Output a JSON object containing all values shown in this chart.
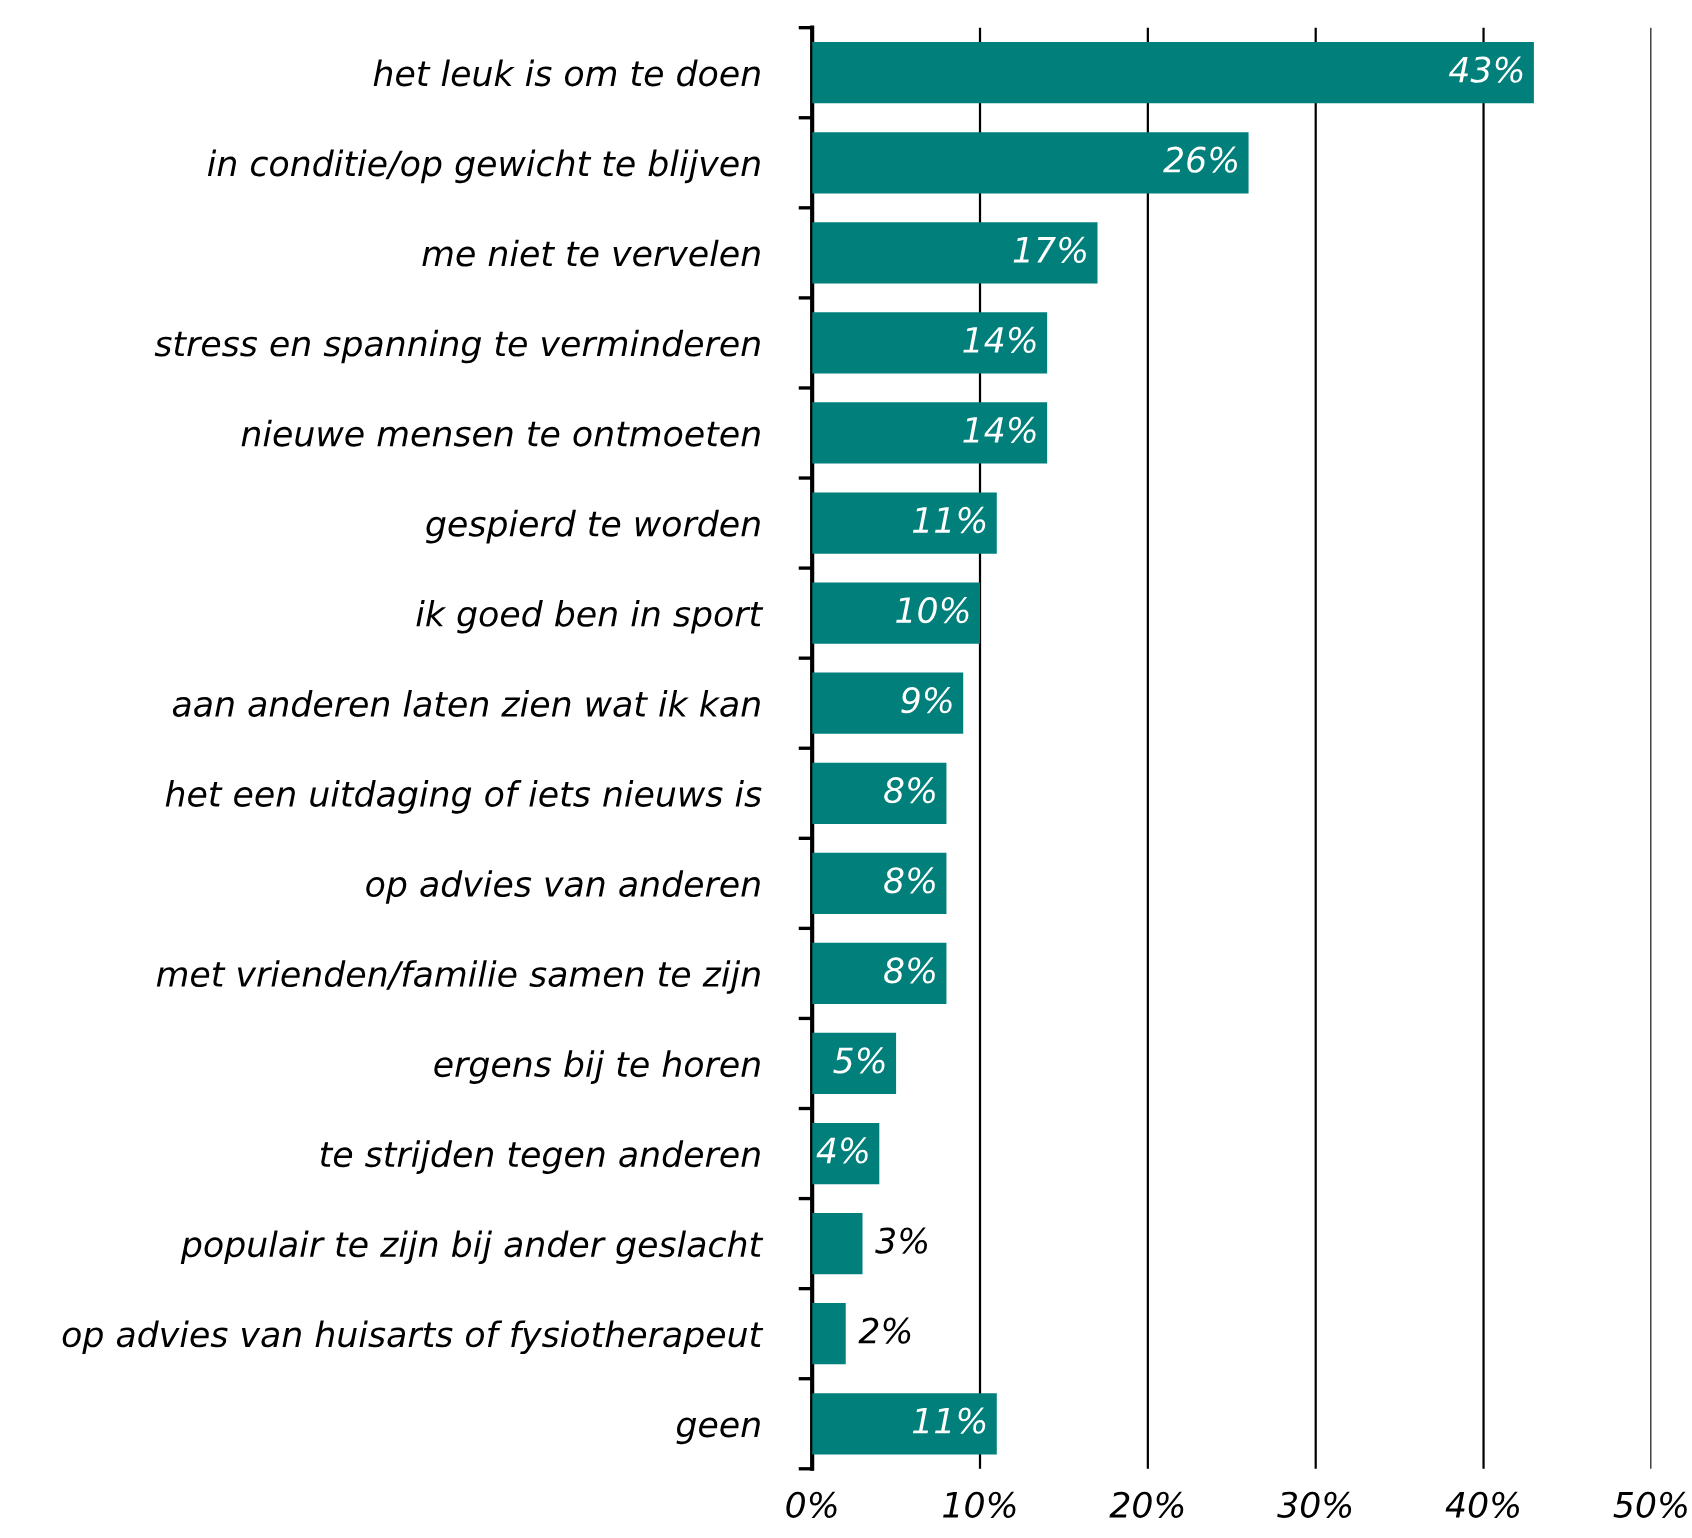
{
  "chart_data": {
    "type": "bar",
    "orientation": "horizontal",
    "categories": [
      "het leuk is om te doen",
      "in conditie/op gewicht te blijven",
      "me niet te vervelen",
      "stress en spanning te verminderen",
      "nieuwe mensen te ontmoeten",
      "gespierd te worden",
      "ik goed ben in sport",
      "aan anderen laten zien wat ik kan",
      "het een uitdaging of iets nieuws is",
      "op advies van anderen",
      "met vrienden/familie samen te zijn",
      "ergens bij te horen",
      "te strijden tegen anderen",
      "populair te zijn bij ander geslacht",
      "op advies van huisarts of fysiotherapeut",
      "geen"
    ],
    "values": [
      43,
      26,
      17,
      14,
      14,
      11,
      10,
      9,
      8,
      8,
      8,
      5,
      4,
      3,
      2,
      11
    ],
    "color": "#007f7b",
    "xlim": [
      0,
      50
    ],
    "xticks": [
      {
        "value": 0,
        "label": "0%"
      },
      {
        "value": 10,
        "label": "10%"
      },
      {
        "value": 20,
        "label": "20%"
      },
      {
        "value": 30,
        "label": "30%"
      },
      {
        "value": 40,
        "label": "40%"
      },
      {
        "value": 50,
        "label": "50%"
      }
    ],
    "value_labels": [
      "43%",
      "26%",
      "17%",
      "14%",
      "14%",
      "11%",
      "10%",
      "9%",
      "8%",
      "8%",
      "8%",
      "5%",
      "4%",
      "3%",
      "2%",
      "11%"
    ],
    "grid": "x"
  }
}
